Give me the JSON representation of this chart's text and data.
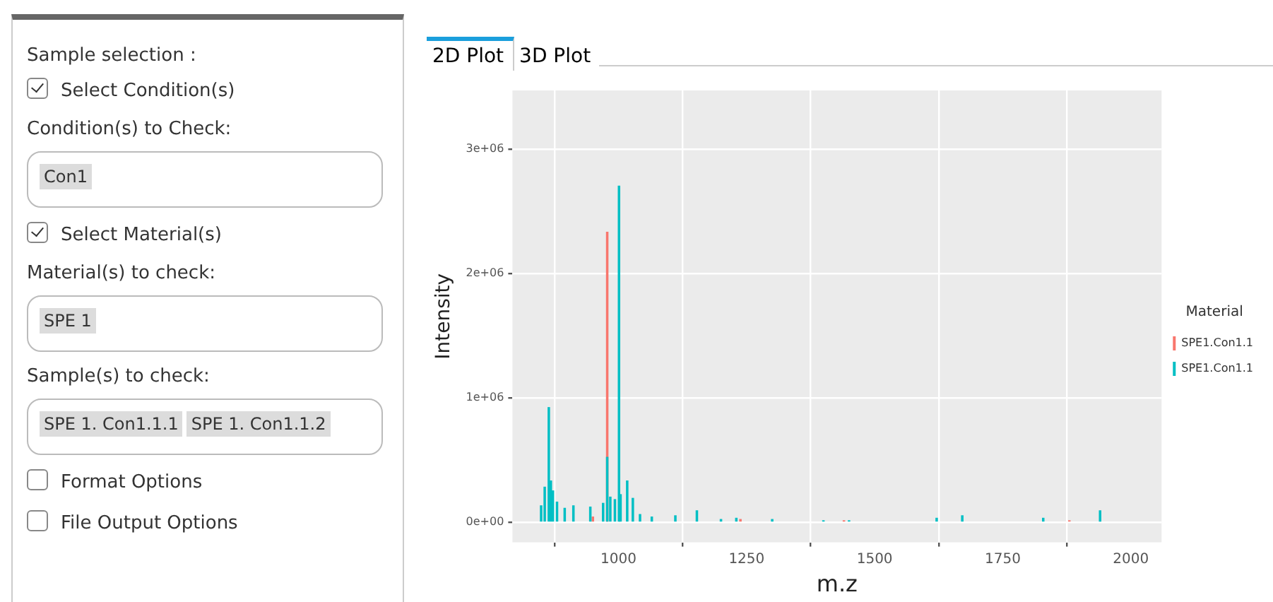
{
  "chart_data": {
    "type": "bar",
    "xlabel": "m.z",
    "ylabel": "Intensity",
    "legend_title": "Material",
    "legend": "right",
    "grid": true,
    "xlim": [
      793,
      2060
    ],
    "xticks": [
      1000,
      1250,
      1500,
      1750,
      2000
    ],
    "ylim": [
      -164000,
      3470000
    ],
    "yticks": [
      {
        "value": 0,
        "label": "0e+00"
      },
      {
        "value": 1000000,
        "label": "1e+06"
      },
      {
        "value": 2000000,
        "label": "2e+06"
      },
      {
        "value": 3000000,
        "label": "3e+06"
      }
    ],
    "series": [
      {
        "name": "SPE1.Con1.1",
        "color": "#f8766d",
        "x": [
          950,
          978,
          1238,
          1440,
          1880
        ],
        "values": [
          40000,
          2330000,
          20000,
          10000,
          10000
        ]
      },
      {
        "name": "SPE1.Con1.1",
        "color": "#00bfc4",
        "x": [
          849,
          856,
          864,
          868,
          872,
          880,
          895,
          912,
          945,
          970,
          978,
          984,
          993,
          1001,
          1004,
          1017,
          1028,
          1042,
          1065,
          1111,
          1153,
          1200,
          1230,
          1300,
          1400,
          1450,
          1621,
          1671,
          1829,
          1940
        ],
        "values": [
          130000,
          280000,
          920000,
          330000,
          250000,
          160000,
          110000,
          130000,
          120000,
          150000,
          520000,
          200000,
          180000,
          2700000,
          220000,
          330000,
          190000,
          60000,
          40000,
          50000,
          90000,
          20000,
          30000,
          20000,
          10000,
          10000,
          30000,
          50000,
          30000,
          90000
        ]
      }
    ],
    "annotations": [
      "2D Plot",
      "3D Plot",
      "Sample selection :",
      "Select Condition(s)",
      "Condition(s) to Check:",
      "Con1",
      "Select Material(s)",
      "Material(s) to check:",
      "SPE 1",
      "Sample(s) to check:",
      "SPE 1. Con1.1.1",
      "SPE 1. Con1.1.2",
      "Format Options",
      "File Output Options"
    ]
  }
}
